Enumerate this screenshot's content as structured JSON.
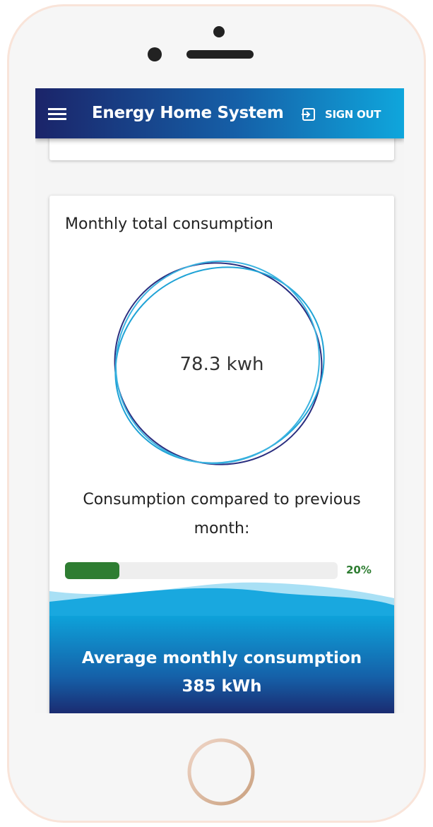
{
  "header": {
    "title": "Energy Home System",
    "sign_out": "SIGN OUT"
  },
  "monthly_card": {
    "title": "Monthly total consumption",
    "total": "78.3 kwh",
    "comparison_label": "Consumption compared to previous month:",
    "progress": {
      "value": 20,
      "label": "20%"
    }
  },
  "average_card": {
    "title": "Average monthly consumption",
    "value": "385 kWh"
  }
}
